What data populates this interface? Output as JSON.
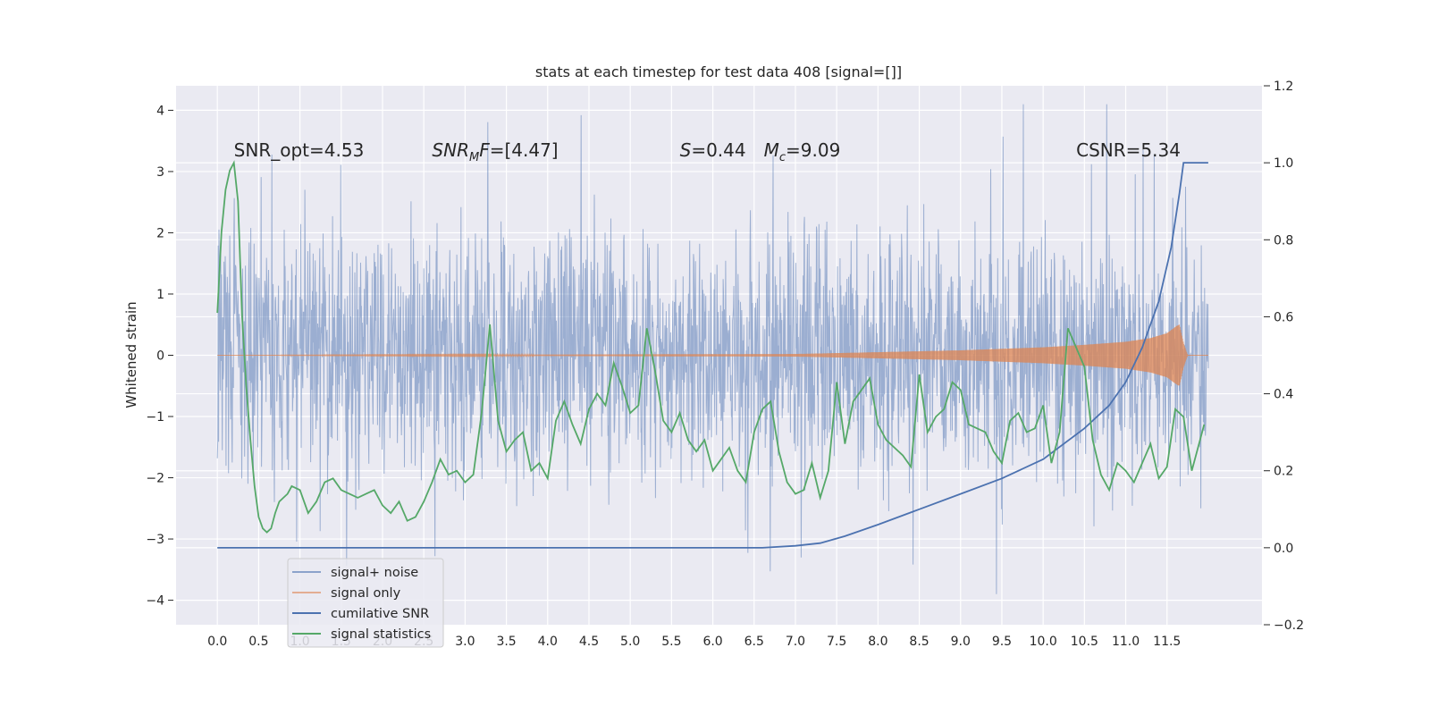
{
  "chart_data": {
    "type": "line",
    "title": "stats at each timestep for test data 408 [signal=[]]",
    "ylabel": "Whitened strain",
    "xlim": [
      -0.5,
      12.65
    ],
    "ylim": [
      -4.4,
      4.4
    ],
    "y2lim": [
      -0.2,
      1.2
    ],
    "x_ticks": [
      0.0,
      0.5,
      1.0,
      1.5,
      2.0,
      2.5,
      3.0,
      3.5,
      4.0,
      4.5,
      5.0,
      5.5,
      6.0,
      6.5,
      7.0,
      7.5,
      8.0,
      8.5,
      9.0,
      9.5,
      10.0,
      10.5,
      11.0,
      11.5
    ],
    "x_tick_labels": [
      "0.0",
      "0.5",
      "1.0",
      "1.5",
      "2.0",
      "2.5",
      "3.0",
      "3.5",
      "4.0",
      "4.5",
      "5.0",
      "5.5",
      "6.0",
      "6.5",
      "7.0",
      "7.5",
      "8.0",
      "8.5",
      "9.0",
      "9.5",
      "10.0",
      "10.5",
      "11.0",
      "11.5"
    ],
    "y_ticks": [
      -4,
      -3,
      -2,
      -1,
      0,
      1,
      2,
      3,
      4
    ],
    "y_tick_labels": [
      "−4",
      "−3",
      "−2",
      "−1",
      "0",
      "1",
      "2",
      "3",
      "4"
    ],
    "y2_ticks": [
      -0.2,
      0.0,
      0.2,
      0.4,
      0.6,
      0.8,
      1.0,
      1.2
    ],
    "y2_tick_labels": [
      "−0.2",
      "0.0",
      "0.2",
      "0.4",
      "0.6",
      "0.8",
      "1.0",
      "1.2"
    ],
    "grid": true,
    "legend_position": "lower-left",
    "annotations": [
      {
        "text": "SNR_opt=4.53",
        "x": 0.2,
        "y": 3.25
      },
      {
        "text": "SNR_MF=[4.47]",
        "x": 2.6,
        "y": 3.25
      },
      {
        "text": "S=0.44   M_c=9.09",
        "x": 5.6,
        "y": 3.25
      },
      {
        "text": "CSNR=5.34",
        "x": 10.4,
        "y": 3.25
      }
    ],
    "series": [
      {
        "name": "signal+ noise",
        "axis": "left",
        "color": "#4c72b0",
        "description_values": {
          "x_start": 0.0,
          "x_end": 12.0,
          "mean": 0.0,
          "approx_range": [
            -3.9,
            4.1
          ]
        }
      },
      {
        "name": "signal only",
        "axis": "left",
        "color": "#dd8452",
        "envelope_x": [
          0.0,
          7.0,
          8.0,
          9.0,
          10.0,
          10.5,
          11.0,
          11.3,
          11.5,
          11.62,
          11.65,
          11.7,
          11.75,
          12.0
        ],
        "envelope_amp": [
          0.0,
          0.02,
          0.05,
          0.08,
          0.13,
          0.17,
          0.22,
          0.28,
          0.36,
          0.48,
          0.5,
          0.2,
          0.0,
          0.0
        ]
      },
      {
        "name": "cumilative SNR",
        "axis": "right",
        "color": "#4c72b0",
        "x": [
          0.0,
          6.0,
          6.6,
          7.0,
          7.3,
          7.6,
          8.0,
          8.5,
          9.0,
          9.5,
          10.0,
          10.5,
          10.8,
          11.0,
          11.2,
          11.4,
          11.55,
          11.65,
          11.7,
          11.75,
          12.0
        ],
        "y": [
          0.0,
          0.0,
          0.0,
          0.005,
          0.012,
          0.03,
          0.06,
          0.1,
          0.14,
          0.18,
          0.23,
          0.31,
          0.37,
          0.43,
          0.52,
          0.64,
          0.78,
          0.92,
          1.0,
          1.0,
          1.0
        ]
      },
      {
        "name": "signal statistics",
        "axis": "right",
        "color": "#55a868",
        "x": [
          0.0,
          0.05,
          0.1,
          0.15,
          0.2,
          0.25,
          0.3,
          0.35,
          0.4,
          0.45,
          0.5,
          0.55,
          0.6,
          0.65,
          0.7,
          0.75,
          0.8,
          0.85,
          0.9,
          1.0,
          1.1,
          1.2,
          1.3,
          1.4,
          1.5,
          1.6,
          1.7,
          1.8,
          1.9,
          2.0,
          2.1,
          2.2,
          2.3,
          2.4,
          2.5,
          2.6,
          2.7,
          2.8,
          2.9,
          3.0,
          3.1,
          3.2,
          3.3,
          3.4,
          3.5,
          3.6,
          3.7,
          3.8,
          3.9,
          4.0,
          4.1,
          4.2,
          4.3,
          4.4,
          4.5,
          4.6,
          4.7,
          4.8,
          4.9,
          5.0,
          5.1,
          5.2,
          5.3,
          5.4,
          5.5,
          5.6,
          5.7,
          5.8,
          5.9,
          6.0,
          6.1,
          6.2,
          6.3,
          6.4,
          6.5,
          6.6,
          6.7,
          6.8,
          6.9,
          7.0,
          7.1,
          7.2,
          7.3,
          7.4,
          7.5,
          7.6,
          7.7,
          7.8,
          7.9,
          8.0,
          8.1,
          8.2,
          8.3,
          8.4,
          8.5,
          8.6,
          8.7,
          8.8,
          8.9,
          9.0,
          9.1,
          9.2,
          9.3,
          9.4,
          9.5,
          9.6,
          9.7,
          9.8,
          9.9,
          10.0,
          10.1,
          10.2,
          10.3,
          10.4,
          10.5,
          10.6,
          10.7,
          10.8,
          10.9,
          11.0,
          11.1,
          11.2,
          11.3,
          11.4,
          11.5,
          11.6,
          11.7,
          11.8,
          11.9,
          11.95
        ],
        "y": [
          0.61,
          0.82,
          0.93,
          0.98,
          1.0,
          0.9,
          0.6,
          0.42,
          0.28,
          0.16,
          0.08,
          0.05,
          0.04,
          0.05,
          0.09,
          0.12,
          0.13,
          0.14,
          0.16,
          0.15,
          0.09,
          0.12,
          0.17,
          0.18,
          0.15,
          0.14,
          0.13,
          0.14,
          0.15,
          0.11,
          0.09,
          0.12,
          0.07,
          0.08,
          0.12,
          0.17,
          0.23,
          0.19,
          0.2,
          0.17,
          0.19,
          0.35,
          0.58,
          0.33,
          0.25,
          0.28,
          0.3,
          0.2,
          0.22,
          0.18,
          0.33,
          0.38,
          0.32,
          0.27,
          0.36,
          0.4,
          0.37,
          0.48,
          0.42,
          0.35,
          0.37,
          0.57,
          0.46,
          0.33,
          0.3,
          0.35,
          0.28,
          0.25,
          0.28,
          0.2,
          0.23,
          0.26,
          0.2,
          0.17,
          0.3,
          0.36,
          0.38,
          0.25,
          0.17,
          0.14,
          0.15,
          0.22,
          0.13,
          0.2,
          0.43,
          0.27,
          0.38,
          0.41,
          0.44,
          0.32,
          0.28,
          0.26,
          0.24,
          0.21,
          0.45,
          0.3,
          0.34,
          0.36,
          0.43,
          0.41,
          0.32,
          0.31,
          0.3,
          0.25,
          0.22,
          0.33,
          0.35,
          0.3,
          0.31,
          0.37,
          0.22,
          0.3,
          0.57,
          0.52,
          0.47,
          0.28,
          0.19,
          0.15,
          0.22,
          0.2,
          0.17,
          0.22,
          0.27,
          0.18,
          0.21,
          0.36,
          0.34,
          0.2,
          0.28,
          0.32
        ]
      }
    ]
  }
}
